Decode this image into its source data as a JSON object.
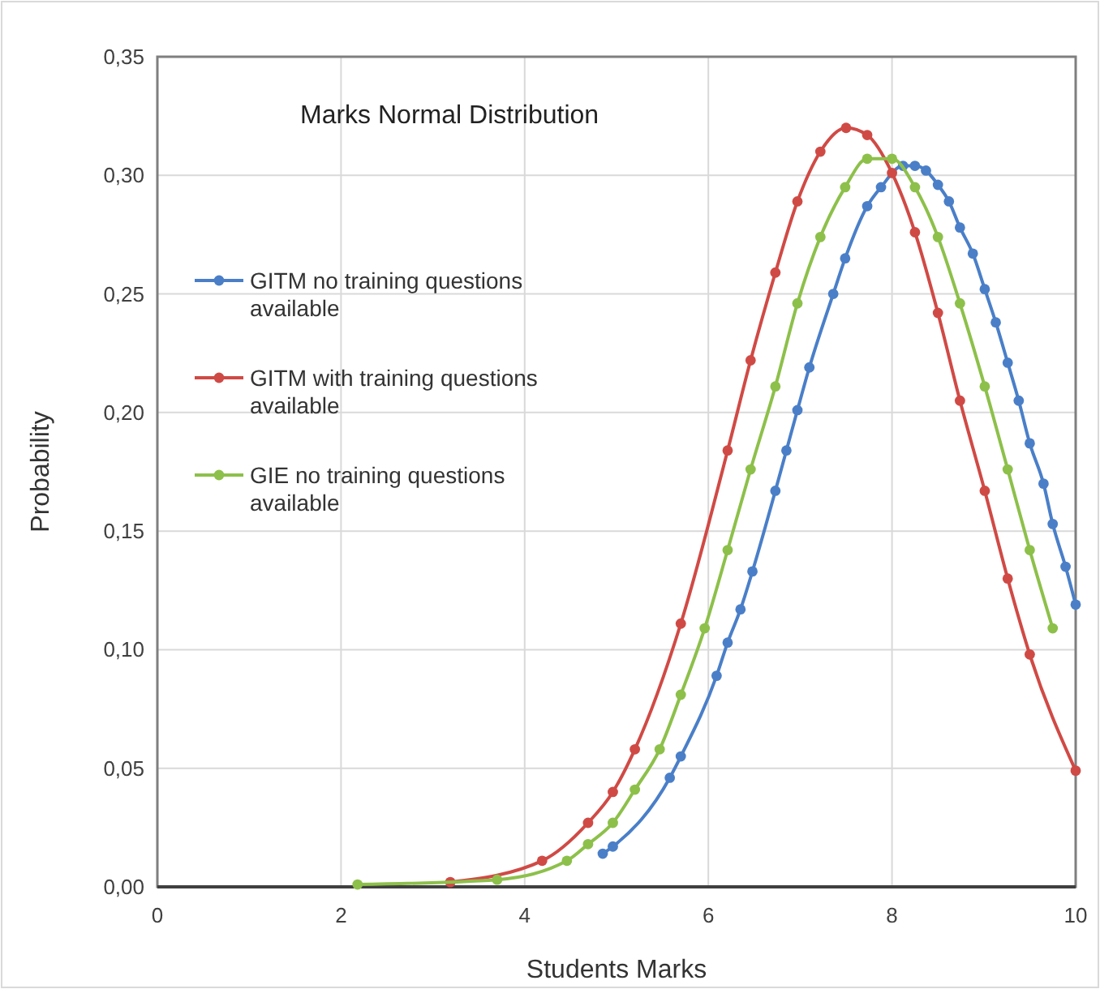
{
  "chart_data": {
    "type": "line",
    "title": "Marks Normal Distribution",
    "xlabel": "Students Marks",
    "ylabel": "Probability",
    "xlim": [
      0,
      10
    ],
    "ylim": [
      0,
      0.35
    ],
    "xticks": [
      0,
      2,
      4,
      6,
      8,
      10
    ],
    "yticks": [
      {
        "value": 0,
        "label": "0,00"
      },
      {
        "value": 0.05,
        "label": "0,05"
      },
      {
        "value": 0.1,
        "label": "0,10"
      },
      {
        "value": 0.15,
        "label": "0,15"
      },
      {
        "value": 0.2,
        "label": "0,20"
      },
      {
        "value": 0.25,
        "label": "0,25"
      },
      {
        "value": 0.3,
        "label": "0,30"
      },
      {
        "value": 0.35,
        "label": "0,35"
      }
    ],
    "grid": true,
    "legend": "left",
    "marker": "circle",
    "line_style": "solid",
    "series": [
      {
        "name": "GITM no training questions available",
        "color": "#4a7fc8",
        "x": [
          4.85,
          4.96,
          5.58,
          5.7,
          6.09,
          6.21,
          6.35,
          6.48,
          6.73,
          6.85,
          6.97,
          7.1,
          7.36,
          7.49,
          7.73,
          7.88,
          8.0,
          8.12,
          8.25,
          8.37,
          8.5,
          8.62,
          8.74,
          8.88,
          9.01,
          9.13,
          9.26,
          9.38,
          9.5,
          9.65,
          9.75,
          9.89,
          10.0
        ],
        "values": [
          0.014,
          0.017,
          0.046,
          0.055,
          0.089,
          0.103,
          0.117,
          0.133,
          0.167,
          0.184,
          0.201,
          0.219,
          0.25,
          0.265,
          0.287,
          0.295,
          null,
          0.304,
          0.304,
          0.302,
          0.296,
          0.289,
          0.278,
          0.267,
          0.252,
          0.238,
          0.221,
          0.205,
          0.187,
          0.17,
          0.153,
          0.135,
          0.119
        ]
      },
      {
        "name": "GITM with training questions available",
        "color": "#d04a45",
        "x": [
          3.19,
          4.19,
          4.69,
          4.96,
          5.2,
          5.7,
          6.21,
          6.46,
          6.73,
          6.97,
          7.22,
          7.5,
          7.73,
          8.0,
          8.25,
          8.5,
          8.74,
          9.01,
          9.26,
          9.5,
          10.0
        ],
        "values": [
          0.002,
          0.011,
          0.027,
          0.04,
          0.058,
          0.111,
          0.184,
          0.222,
          0.259,
          0.289,
          0.31,
          0.32,
          0.317,
          0.301,
          0.276,
          0.242,
          0.205,
          0.167,
          0.13,
          0.098,
          0.049
        ]
      },
      {
        "name": "GIE no training questions available",
        "color": "#8dc04a",
        "x": [
          2.18,
          3.7,
          4.46,
          4.69,
          4.96,
          5.2,
          5.47,
          5.7,
          5.96,
          6.21,
          6.46,
          6.73,
          6.97,
          7.22,
          7.49,
          7.73,
          8.0,
          8.25,
          8.5,
          8.74,
          9.01,
          9.26,
          9.5,
          9.75
        ],
        "values": [
          0.001,
          0.003,
          0.011,
          0.018,
          0.027,
          0.041,
          0.058,
          0.081,
          0.109,
          0.142,
          0.176,
          0.211,
          0.246,
          0.274,
          0.295,
          0.307,
          0.307,
          0.295,
          0.274,
          0.246,
          0.211,
          0.176,
          0.142,
          0.109
        ]
      }
    ]
  }
}
